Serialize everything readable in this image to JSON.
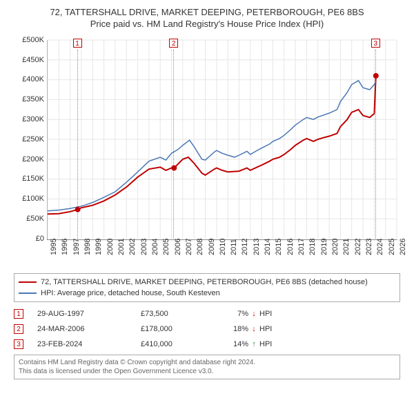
{
  "title_line1": "72, TATTERSHALL DRIVE, MARKET DEEPING, PETERBOROUGH, PE6 8BS",
  "title_line2": "Price paid vs. HM Land Registry's House Price Index (HPI)",
  "chart": {
    "type": "line",
    "background_color": "#ffffff",
    "grid_color": "#e6e6e6",
    "axis_color": "#888888",
    "x_years": [
      1995,
      1996,
      1997,
      1998,
      1999,
      2000,
      2001,
      2002,
      2003,
      2004,
      2005,
      2006,
      2007,
      2008,
      2009,
      2010,
      2011,
      2012,
      2013,
      2014,
      2015,
      2016,
      2017,
      2018,
      2019,
      2020,
      2021,
      2022,
      2023,
      2024,
      2025,
      2026
    ],
    "x_min": 1995,
    "x_max": 2026,
    "ylim": [
      0,
      500000
    ],
    "ytick_step": 50000,
    "ytick_labels": [
      "£0",
      "£50K",
      "£100K",
      "£150K",
      "£200K",
      "£250K",
      "£300K",
      "£350K",
      "£400K",
      "£450K",
      "£500K"
    ],
    "series": [
      {
        "name": "property",
        "color": "#c00000",
        "width": 2,
        "points": [
          [
            1995,
            62000
          ],
          [
            1996,
            63000
          ],
          [
            1997,
            68000
          ],
          [
            1997.67,
            73500
          ],
          [
            1998,
            78000
          ],
          [
            1999,
            84000
          ],
          [
            2000,
            95000
          ],
          [
            2001,
            110000
          ],
          [
            2002,
            130000
          ],
          [
            2003,
            155000
          ],
          [
            2004,
            175000
          ],
          [
            2005,
            180000
          ],
          [
            2005.5,
            172000
          ],
          [
            2006,
            178000
          ],
          [
            2006.23,
            178000
          ],
          [
            2007,
            200000
          ],
          [
            2007.5,
            205000
          ],
          [
            2008,
            190000
          ],
          [
            2008.7,
            165000
          ],
          [
            2009,
            160000
          ],
          [
            2009.8,
            175000
          ],
          [
            2010,
            178000
          ],
          [
            2010.5,
            172000
          ],
          [
            2011,
            168000
          ],
          [
            2012,
            170000
          ],
          [
            2012.7,
            178000
          ],
          [
            2013,
            172000
          ],
          [
            2013.6,
            180000
          ],
          [
            2014,
            185000
          ],
          [
            2014.7,
            195000
          ],
          [
            2015,
            200000
          ],
          [
            2015.6,
            205000
          ],
          [
            2016,
            212000
          ],
          [
            2016.6,
            225000
          ],
          [
            2017,
            235000
          ],
          [
            2017.7,
            248000
          ],
          [
            2018,
            252000
          ],
          [
            2018.6,
            245000
          ],
          [
            2019,
            250000
          ],
          [
            2019.6,
            255000
          ],
          [
            2020,
            258000
          ],
          [
            2020.7,
            265000
          ],
          [
            2021,
            282000
          ],
          [
            2021.6,
            300000
          ],
          [
            2022,
            318000
          ],
          [
            2022.6,
            325000
          ],
          [
            2023,
            310000
          ],
          [
            2023.6,
            305000
          ],
          [
            2024,
            315000
          ],
          [
            2024.15,
            410000
          ]
        ]
      },
      {
        "name": "hpi",
        "color": "#4a78b5",
        "width": 1.5,
        "points": [
          [
            1995,
            70000
          ],
          [
            1996,
            72000
          ],
          [
            1997,
            76000
          ],
          [
            1998,
            82000
          ],
          [
            1999,
            91000
          ],
          [
            2000,
            104000
          ],
          [
            2001,
            118000
          ],
          [
            2002,
            142000
          ],
          [
            2003,
            168000
          ],
          [
            2004,
            195000
          ],
          [
            2005,
            205000
          ],
          [
            2005.5,
            198000
          ],
          [
            2006,
            215000
          ],
          [
            2006.6,
            225000
          ],
          [
            2007,
            235000
          ],
          [
            2007.6,
            248000
          ],
          [
            2008,
            232000
          ],
          [
            2008.7,
            200000
          ],
          [
            2009,
            198000
          ],
          [
            2009.8,
            218000
          ],
          [
            2010,
            222000
          ],
          [
            2010.5,
            215000
          ],
          [
            2011,
            210000
          ],
          [
            2011.6,
            205000
          ],
          [
            2012,
            210000
          ],
          [
            2012.7,
            220000
          ],
          [
            2013,
            212000
          ],
          [
            2013.6,
            222000
          ],
          [
            2014,
            228000
          ],
          [
            2014.7,
            238000
          ],
          [
            2015,
            245000
          ],
          [
            2015.6,
            252000
          ],
          [
            2016,
            260000
          ],
          [
            2016.6,
            275000
          ],
          [
            2017,
            286000
          ],
          [
            2017.7,
            300000
          ],
          [
            2018,
            305000
          ],
          [
            2018.6,
            300000
          ],
          [
            2019,
            306000
          ],
          [
            2019.6,
            312000
          ],
          [
            2020,
            316000
          ],
          [
            2020.7,
            325000
          ],
          [
            2021,
            345000
          ],
          [
            2021.6,
            368000
          ],
          [
            2022,
            388000
          ],
          [
            2022.6,
            398000
          ],
          [
            2023,
            380000
          ],
          [
            2023.6,
            375000
          ],
          [
            2024,
            388000
          ],
          [
            2024.15,
            395000
          ]
        ]
      }
    ],
    "markers": [
      {
        "n": "1",
        "date": "29-AUG-1997",
        "x": 1997.67,
        "y": 73500,
        "price": "£73,500",
        "pct": "7%",
        "arrow": "↓",
        "arrow_color": "#c00000",
        "hpi": "HPI"
      },
      {
        "n": "2",
        "date": "24-MAR-2006",
        "x": 2006.23,
        "y": 178000,
        "price": "£178,000",
        "pct": "18%",
        "arrow": "↓",
        "arrow_color": "#c00000",
        "hpi": "HPI"
      },
      {
        "n": "3",
        "date": "23-FEB-2024",
        "x": 2024.15,
        "y": 410000,
        "price": "£410,000",
        "pct": "14%",
        "arrow": "↑",
        "arrow_color": "#2a8a2a",
        "hpi": "HPI"
      }
    ]
  },
  "legend": {
    "series1": {
      "label": "72, TATTERSHALL DRIVE, MARKET DEEPING, PETERBOROUGH, PE6 8BS (detached house)",
      "color": "#c00000"
    },
    "series2": {
      "label": "HPI: Average price, detached house, South Kesteven",
      "color": "#4a78b5"
    }
  },
  "footer_line1": "Contains HM Land Registry data © Crown copyright and database right 2024.",
  "footer_line2": "This data is licensed under the Open Government Licence v3.0."
}
